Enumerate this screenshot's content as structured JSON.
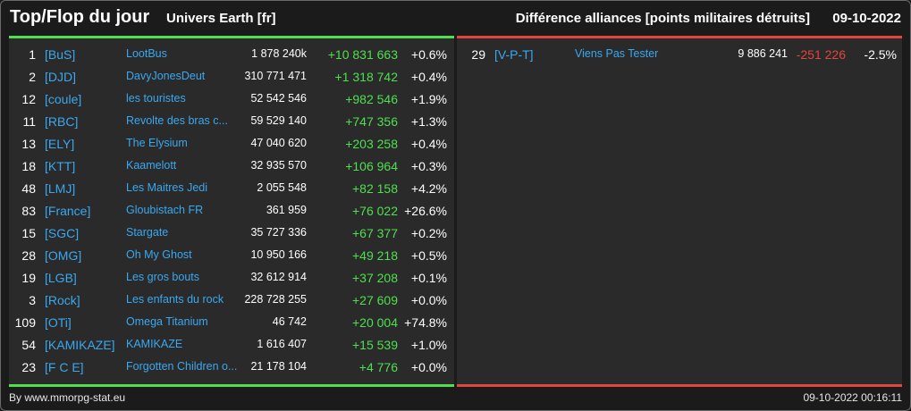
{
  "header": {
    "title": "Top/Flop du jour",
    "server": "Univers Earth [fr]",
    "caption": "Différence alliances [points militaires détruits]",
    "date": "09-10-2022"
  },
  "colors": {
    "positive": "#4ee04e",
    "negative": "#e0463a",
    "tag": "#3aa8f0"
  },
  "top": [
    {
      "rank": "1",
      "tag": "[BuS]",
      "name": "LootBus",
      "points": "1 878 240k",
      "delta": "+10 831 663",
      "pct": "+0.6%"
    },
    {
      "rank": "2",
      "tag": "[DJD]",
      "name": "DavyJonesDeut",
      "points": "310 771 471",
      "delta": "+1 318 742",
      "pct": "+0.4%"
    },
    {
      "rank": "12",
      "tag": "[coule]",
      "name": "les touristes",
      "points": "52 542 546",
      "delta": "+982 546",
      "pct": "+1.9%"
    },
    {
      "rank": "11",
      "tag": "[RBC]",
      "name": "Revolte des bras c...",
      "points": "59 529 140",
      "delta": "+747 356",
      "pct": "+1.3%"
    },
    {
      "rank": "13",
      "tag": "[ELY]",
      "name": "The Elysium",
      "points": "47 040 620",
      "delta": "+203 258",
      "pct": "+0.4%"
    },
    {
      "rank": "18",
      "tag": "[KTT]",
      "name": "Kaamelott",
      "points": "32 935 570",
      "delta": "+106 964",
      "pct": "+0.3%"
    },
    {
      "rank": "48",
      "tag": "[LMJ]",
      "name": "Les Maitres Jedi",
      "points": "2 055 548",
      "delta": "+82 158",
      "pct": "+4.2%"
    },
    {
      "rank": "83",
      "tag": "[France]",
      "name": "Gloubistach FR",
      "points": "361 959",
      "delta": "+76 022",
      "pct": "+26.6%"
    },
    {
      "rank": "15",
      "tag": "[SGC]",
      "name": "Stargate",
      "points": "35 727 336",
      "delta": "+67 377",
      "pct": "+0.2%"
    },
    {
      "rank": "28",
      "tag": "[OMG]",
      "name": "Oh My Ghost",
      "points": "10 950 166",
      "delta": "+49 218",
      "pct": "+0.5%"
    },
    {
      "rank": "19",
      "tag": "[LGB]",
      "name": "Les gros bouts",
      "points": "32 612 914",
      "delta": "+37 208",
      "pct": "+0.1%"
    },
    {
      "rank": "3",
      "tag": "[Rock]",
      "name": "Les enfants du rock",
      "points": "228 728 255",
      "delta": "+27 609",
      "pct": "+0.0%"
    },
    {
      "rank": "109",
      "tag": "[OTi]",
      "name": "Omega Titanium",
      "points": "46 742",
      "delta": "+20 004",
      "pct": "+74.8%"
    },
    {
      "rank": "54",
      "tag": "[KAMIKAZE]",
      "name": "KAMIKAZE",
      "points": "1 616 407",
      "delta": "+15 539",
      "pct": "+1.0%"
    },
    {
      "rank": "23",
      "tag": "[F C E]",
      "name": "Forgotten Children o...",
      "points": "21 178 104",
      "delta": "+4 776",
      "pct": "+0.0%"
    }
  ],
  "flop": [
    {
      "rank": "29",
      "tag": "[V-P-T]",
      "name": "Viens Pas Tester",
      "points": "9 886 241",
      "delta": "-251 226",
      "pct": "-2.5%"
    }
  ],
  "footer": {
    "source": "By www.mmorpg-stat.eu",
    "timestamp": "09-10-2022 00:16:11"
  }
}
